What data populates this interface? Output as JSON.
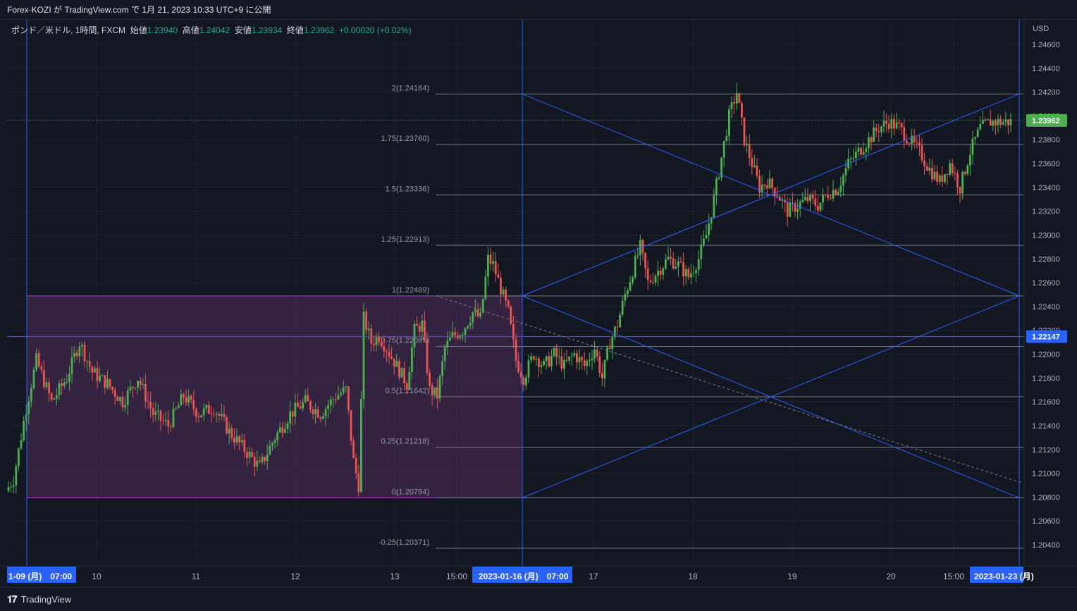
{
  "header": {
    "published": "Forex-KOZI が TradingView.com で 1月 21, 2023 10:33 UTC+9 に公開"
  },
  "legend": {
    "symbol": "ポンド／米ドル, 1時間, FXCM",
    "open_label": "始値",
    "open": "1.23940",
    "high_label": "高値",
    "high": "1.24042",
    "low_label": "安値",
    "low": "1.23934",
    "close_label": "終値",
    "close": "1.23962",
    "change": "+0.00020 (+0.02%)"
  },
  "axis": {
    "currency": "USD",
    "price_labels": [
      "1.24600",
      "1.24400",
      "1.24200",
      "1.24000",
      "1.23800",
      "1.23600",
      "1.23400",
      "1.23200",
      "1.23000",
      "1.22800",
      "1.22600",
      "1.22400",
      "1.22200",
      "1.22000",
      "1.21800",
      "1.21600",
      "1.21400",
      "1.21200",
      "1.21000",
      "1.20800",
      "1.20600",
      "1.20400"
    ],
    "current_price_tag": "1.23962",
    "crosshair_price_tag": "1.22147",
    "time_labels": [
      "10",
      "11",
      "12",
      "13",
      "15:00",
      "17",
      "18",
      "19",
      "20",
      "15:00"
    ],
    "time_highlight_left": "1-09 (月)　07:00",
    "time_highlight_mid": "2023-01-16 (月)　07:00",
    "time_highlight_right": "2023-01-23 (月)"
  },
  "colors": {
    "up": "#26a69a",
    "up_bright": "#4caf50",
    "down": "#ef5350",
    "fan_line": "#2962ff",
    "box_fill": "#4a2a55",
    "box_border": "#ab47bc",
    "fib_line": "#787b86",
    "tag_blue": "#2962ff",
    "tag_green": "#4caf50"
  },
  "footer": {
    "brand": "TradingView"
  },
  "chart_data": {
    "type": "candlestick",
    "symbol": "GBPUSD",
    "interval": "1時間",
    "ylim": [
      1.203,
      1.2475
    ],
    "fib_levels": [
      {
        "label": "2(1.24184)",
        "price": 1.24184
      },
      {
        "label": "1.75(1.23760)",
        "price": 1.2376
      },
      {
        "label": "1.5(1.23336)",
        "price": 1.23336
      },
      {
        "label": "1.25(1.22913)",
        "price": 1.22913
      },
      {
        "label": "1(1.22489)",
        "price": 1.22489
      },
      {
        "label": "0.75(1.22065)",
        "price": 1.22065
      },
      {
        "label": "0.5(1.21642)",
        "price": 1.21642
      },
      {
        "label": "0.25(1.21218)",
        "price": 1.21218
      },
      {
        "label": "0(1.20794)",
        "price": 1.20794
      },
      {
        "label": "-0.25(1.20371)",
        "price": 1.20371
      }
    ],
    "range_box": {
      "top": 1.22489,
      "bottom": 1.20794
    },
    "path": [
      [
        0,
        1.2085
      ],
      [
        3,
        1.2095
      ],
      [
        8,
        1.2155
      ],
      [
        12,
        1.2195
      ],
      [
        18,
        1.216
      ],
      [
        24,
        1.218
      ],
      [
        29,
        1.221
      ],
      [
        34,
        1.2185
      ],
      [
        40,
        1.2175
      ],
      [
        46,
        1.216
      ],
      [
        52,
        1.218
      ],
      [
        58,
        1.215
      ],
      [
        64,
        1.214
      ],
      [
        70,
        1.2165
      ],
      [
        76,
        1.215
      ],
      [
        82,
        1.2155
      ],
      [
        88,
        1.2135
      ],
      [
        94,
        1.212
      ],
      [
        100,
        1.2105
      ],
      [
        106,
        1.213
      ],
      [
        112,
        1.215
      ],
      [
        118,
        1.216
      ],
      [
        124,
        1.215
      ],
      [
        130,
        1.2165
      ],
      [
        134,
        1.217
      ],
      [
        137,
        1.211
      ],
      [
        139,
        1.209
      ],
      [
        141,
        1.223
      ],
      [
        144,
        1.221
      ],
      [
        147,
        1.2215
      ],
      [
        150,
        1.2205
      ],
      [
        154,
        1.219
      ],
      [
        158,
        1.2175
      ],
      [
        161,
        1.222
      ],
      [
        164,
        1.2225
      ],
      [
        167,
        1.217
      ],
      [
        170,
        1.2165
      ],
      [
        173,
        1.2205
      ],
      [
        176,
        1.2215
      ],
      [
        180,
        1.222
      ],
      [
        184,
        1.2235
      ],
      [
        187,
        1.223
      ],
      [
        190,
        1.228
      ],
      [
        192,
        1.2275
      ],
      [
        195,
        1.2255
      ],
      [
        198,
        1.2235
      ],
      [
        201,
        1.2195
      ],
      [
        204,
        1.218
      ],
      [
        208,
        1.22
      ],
      [
        212,
        1.219
      ],
      [
        216,
        1.22
      ],
      [
        220,
        1.219
      ],
      [
        224,
        1.22
      ],
      [
        228,
        1.219
      ],
      [
        232,
        1.2205
      ],
      [
        235,
        1.218
      ],
      [
        238,
        1.221
      ],
      [
        241,
        1.2225
      ],
      [
        244,
        1.225
      ],
      [
        247,
        1.227
      ],
      [
        250,
        1.229
      ],
      [
        253,
        1.226
      ],
      [
        257,
        1.227
      ],
      [
        261,
        1.228
      ],
      [
        265,
        1.2275
      ],
      [
        269,
        1.2265
      ],
      [
        273,
        1.228
      ],
      [
        276,
        1.23
      ],
      [
        279,
        1.233
      ],
      [
        282,
        1.2365
      ],
      [
        285,
        1.24
      ],
      [
        288,
        1.242
      ],
      [
        291,
        1.238
      ],
      [
        294,
        1.236
      ],
      [
        297,
        1.234
      ],
      [
        300,
        1.2345
      ],
      [
        304,
        1.2335
      ],
      [
        308,
        1.232
      ],
      [
        312,
        1.2325
      ],
      [
        316,
        1.233
      ],
      [
        320,
        1.2325
      ],
      [
        324,
        1.2335
      ],
      [
        328,
        1.234
      ],
      [
        332,
        1.236
      ],
      [
        336,
        1.237
      ],
      [
        340,
        1.238
      ],
      [
        344,
        1.239
      ],
      [
        348,
        1.2395
      ],
      [
        352,
        1.239
      ],
      [
        356,
        1.238
      ],
      [
        360,
        1.237
      ],
      [
        364,
        1.2355
      ],
      [
        368,
        1.2345
      ],
      [
        372,
        1.236
      ],
      [
        376,
        1.234
      ],
      [
        380,
        1.237
      ],
      [
        384,
        1.239
      ],
      [
        388,
        1.2395
      ]
    ]
  }
}
